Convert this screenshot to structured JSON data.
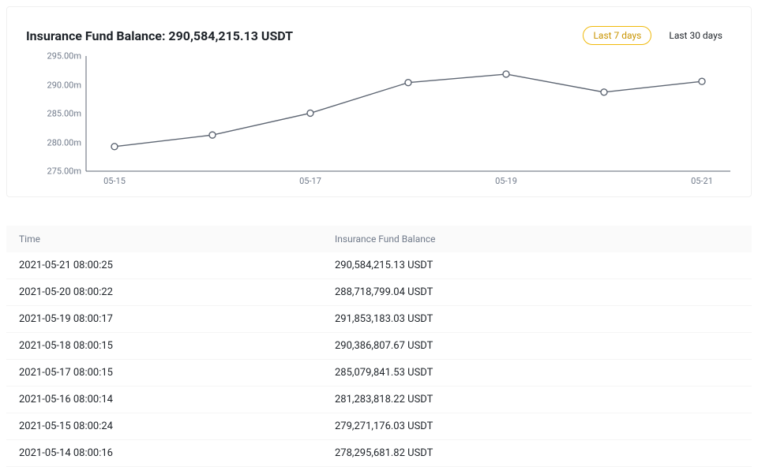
{
  "header": {
    "title": "Insurance Fund Balance: 290,584,215.13 USDT",
    "range7": "Last 7 days",
    "range30": "Last 30 days"
  },
  "chart": {
    "type": "line",
    "ylim": [
      275000000,
      295000000
    ],
    "yticks": [
      {
        "v": 295000000,
        "label": "295.00m"
      },
      {
        "v": 290000000,
        "label": "290.00m"
      },
      {
        "v": 285000000,
        "label": "285.00m"
      },
      {
        "v": 280000000,
        "label": "280.00m"
      },
      {
        "v": 275000000,
        "label": "275.00m"
      }
    ],
    "xticks": [
      {
        "x": "2021-05-15",
        "label": "05-15"
      },
      {
        "x": "2021-05-17",
        "label": "05-17"
      },
      {
        "x": "2021-05-19",
        "label": "05-19"
      },
      {
        "x": "2021-05-21",
        "label": "05-21"
      }
    ],
    "x_domain": [
      "2021-05-15",
      "2021-05-21"
    ],
    "points": [
      {
        "x": "2021-05-15",
        "y": 279271176.03
      },
      {
        "x": "2021-05-16",
        "y": 281283818.22
      },
      {
        "x": "2021-05-17",
        "y": 285079841.53
      },
      {
        "x": "2021-05-18",
        "y": 290386807.67
      },
      {
        "x": "2021-05-19",
        "y": 291853183.03
      },
      {
        "x": "2021-05-20",
        "y": 288718799.04
      },
      {
        "x": "2021-05-21",
        "y": 290584215.13
      }
    ],
    "line_color": "#5e6673",
    "line_width": 1.4,
    "marker_stroke": "#5e6673",
    "marker_fill": "#ffffff",
    "marker_radius": 4,
    "axis_color": "#5e6673",
    "tick_color": "#707a8a",
    "tick_fontsize": 11,
    "background": "#ffffff"
  },
  "table": {
    "headers": {
      "time": "Time",
      "balance": "Insurance Fund Balance"
    },
    "rows": [
      {
        "time": "2021-05-21 08:00:25",
        "balance": "290,584,215.13 USDT"
      },
      {
        "time": "2021-05-20 08:00:22",
        "balance": "288,718,799.04 USDT"
      },
      {
        "time": "2021-05-19 08:00:17",
        "balance": "291,853,183.03 USDT"
      },
      {
        "time": "2021-05-18 08:00:15",
        "balance": "290,386,807.67 USDT"
      },
      {
        "time": "2021-05-17 08:00:15",
        "balance": "285,079,841.53 USDT"
      },
      {
        "time": "2021-05-16 08:00:14",
        "balance": "281,283,818.22 USDT"
      },
      {
        "time": "2021-05-15 08:00:24",
        "balance": "279,271,176.03 USDT"
      },
      {
        "time": "2021-05-14 08:00:16",
        "balance": "278,295,681.82 USDT"
      }
    ]
  }
}
